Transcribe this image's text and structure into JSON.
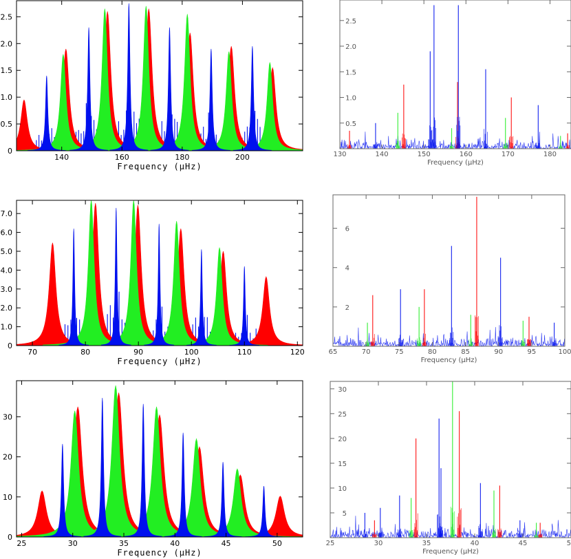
{
  "colors": {
    "red": "#ff0000",
    "green": "#22ee22",
    "blue": "#0010ee"
  },
  "chart_data": [
    {
      "id": "left-1",
      "type": "area",
      "xlabel": "Frequency (μHz)",
      "xlim": [
        125,
        220
      ],
      "ylim": [
        0,
        2.8
      ],
      "xticks": [
        140,
        160,
        180,
        200
      ],
      "xtick_labels": [
        "140",
        "160",
        "180",
        "200"
      ],
      "yticks": [
        0,
        0.5,
        1.0,
        1.5,
        2.0,
        2.5
      ],
      "ytick_labels": [
        "0",
        "0.5",
        "1.0",
        "1.5",
        "2.0",
        "2.5"
      ],
      "series": [
        {
          "color": "red",
          "peaks": [
            [
              127.5,
              0.95
            ],
            [
              141.4,
              1.9
            ],
            [
              155.2,
              2.6
            ],
            [
              168.9,
              2.65
            ],
            [
              182.6,
              2.2
            ],
            [
              196.3,
              1.95
            ],
            [
              210.0,
              1.55
            ]
          ],
          "width": 1.3
        },
        {
          "color": "green",
          "peaks": [
            [
              140.5,
              1.8
            ],
            [
              154.3,
              2.65
            ],
            [
              168.0,
              2.7
            ],
            [
              181.7,
              2.55
            ],
            [
              195.5,
              1.85
            ],
            [
              209.1,
              1.65
            ]
          ],
          "width": 1.1
        },
        {
          "color": "blue",
          "peaks": [
            [
              135.0,
              1.4
            ],
            [
              149.0,
              2.3
            ],
            [
              162.3,
              2.75
            ],
            [
              175.8,
              2.3
            ],
            [
              189.6,
              1.9
            ],
            [
              203.3,
              1.95
            ]
          ],
          "width": 0.45
        }
      ]
    },
    {
      "id": "right-1",
      "type": "line",
      "xlabel": "Frequency (μHz)",
      "xlim": [
        130,
        185
      ],
      "ylim": [
        0,
        2.9
      ],
      "xticks": [
        130,
        140,
        150,
        160,
        170,
        180
      ],
      "xtick_labels": [
        "130",
        "140",
        "150",
        "160",
        "170",
        "180"
      ],
      "yticks": [
        0.5,
        1.0,
        1.5,
        2.0,
        2.5
      ],
      "ytick_labels": [
        "0.5",
        "1.0",
        "1.5",
        "2.0",
        "2.5"
      ],
      "spikes": [
        {
          "color": "red",
          "points": [
            [
              132.3,
              0.35
            ],
            [
              145.2,
              1.25
            ],
            [
              158.0,
              1.3
            ],
            [
              170.8,
              1.0
            ],
            [
              184.2,
              0.3
            ]
          ]
        },
        {
          "color": "green",
          "points": [
            [
              143.8,
              0.7
            ],
            [
              156.6,
              0.4
            ],
            [
              169.4,
              0.6
            ],
            [
              182.5,
              0.25
            ]
          ]
        },
        {
          "color": "blue",
          "points": [
            [
              138.5,
              0.5
            ],
            [
              151.5,
              1.9
            ],
            [
              152.4,
              2.8
            ],
            [
              158.2,
              2.8
            ],
            [
              164.7,
              1.55
            ],
            [
              177.2,
              0.85
            ]
          ]
        }
      ]
    },
    {
      "id": "left-2",
      "type": "area",
      "xlabel": "Frequency (μHz)",
      "xlim": [
        67,
        121
      ],
      "ylim": [
        0,
        7.7
      ],
      "xticks": [
        70,
        80,
        90,
        100,
        110,
        120
      ],
      "xtick_labels": [
        "70",
        "80",
        "90",
        "100",
        "110",
        "120"
      ],
      "yticks": [
        0,
        1.0,
        2.0,
        3.0,
        4.0,
        5.0,
        6.0,
        7.0
      ],
      "ytick_labels": [
        "0",
        "1.0",
        "2.0",
        "3.0",
        "4.0",
        "5.0",
        "6.0",
        "7.0"
      ],
      "series": [
        {
          "color": "red",
          "peaks": [
            [
              73.8,
              5.45
            ],
            [
              81.9,
              7.55
            ],
            [
              89.9,
              7.45
            ],
            [
              98.0,
              6.2
            ],
            [
              106.0,
              5.0
            ],
            [
              114.1,
              3.65
            ]
          ],
          "width": 0.75
        },
        {
          "color": "green",
          "peaks": [
            [
              81.1,
              7.7
            ],
            [
              89.1,
              7.7
            ],
            [
              97.2,
              6.6
            ],
            [
              105.3,
              5.2
            ]
          ],
          "width": 0.65
        },
        {
          "color": "blue",
          "peaks": [
            [
              77.8,
              6.2
            ],
            [
              85.8,
              7.3
            ],
            [
              93.9,
              6.45
            ],
            [
              101.9,
              5.1
            ],
            [
              110.0,
              4.2
            ]
          ],
          "width": 0.2
        }
      ]
    },
    {
      "id": "right-2",
      "type": "line",
      "xlabel": "Frequency (μHz)",
      "xlim": [
        65,
        100
      ],
      "ylim": [
        0,
        7.7
      ],
      "xticks": [
        65,
        70,
        75,
        80,
        85,
        90,
        95,
        100
      ],
      "xtick_labels": [
        "65",
        "70",
        "75",
        "80",
        "85",
        "90",
        "95",
        "100"
      ],
      "yticks": [
        2,
        4,
        6
      ],
      "ytick_labels": [
        "2",
        "4",
        "6"
      ],
      "spikes": [
        {
          "color": "red",
          "points": [
            [
              71.0,
              2.6
            ],
            [
              78.8,
              2.9
            ],
            [
              86.7,
              7.6
            ],
            [
              94.6,
              1.5
            ]
          ]
        },
        {
          "color": "green",
          "points": [
            [
              70.2,
              1.2
            ],
            [
              78.0,
              2.0
            ],
            [
              85.8,
              1.6
            ],
            [
              93.7,
              1.3
            ]
          ]
        },
        {
          "color": "blue",
          "points": [
            [
              75.2,
              2.9
            ],
            [
              82.9,
              5.1
            ],
            [
              90.3,
              4.5
            ],
            [
              98.4,
              1.2
            ]
          ]
        }
      ]
    },
    {
      "id": "left-3",
      "type": "area",
      "xlabel": "Frequency (μHz)",
      "xlim": [
        24.5,
        52.5
      ],
      "ylim": [
        0,
        39
      ],
      "xticks": [
        25,
        30,
        35,
        40,
        45,
        50
      ],
      "xtick_labels": [
        "25",
        "30",
        "35",
        "40",
        "45",
        "50"
      ],
      "yticks": [
        0,
        10,
        20,
        30
      ],
      "ytick_labels": [
        "0",
        "10",
        "20",
        "30"
      ],
      "series": [
        {
          "color": "red",
          "peaks": [
            [
              27.0,
              11.5
            ],
            [
              30.5,
              32.5
            ],
            [
              34.5,
              36.0
            ],
            [
              38.5,
              30.5
            ],
            [
              42.4,
              22.5
            ],
            [
              46.4,
              15.5
            ],
            [
              50.3,
              10.2
            ]
          ],
          "width": 0.5
        },
        {
          "color": "green",
          "peaks": [
            [
              30.2,
              31.5
            ],
            [
              34.2,
              37.8
            ],
            [
              38.2,
              32.5
            ],
            [
              42.1,
              24.5
            ],
            [
              46.1,
              17.0
            ]
          ],
          "width": 0.45
        },
        {
          "color": "blue",
          "peaks": [
            [
              29.0,
              23.2
            ],
            [
              32.9,
              34.7
            ],
            [
              36.9,
              33.2
            ],
            [
              40.8,
              26.0
            ],
            [
              44.7,
              18.7
            ],
            [
              48.7,
              12.7
            ]
          ],
          "width": 0.13
        }
      ]
    },
    {
      "id": "right-3",
      "type": "line",
      "xlabel": "Frequency (μHz)",
      "xlim": [
        25,
        50
      ],
      "ylim": [
        0,
        31.5
      ],
      "xticks": [
        25,
        30,
        35,
        40,
        45,
        50
      ],
      "xtick_labels": [
        "25",
        "30",
        "35",
        "40",
        "45",
        "50"
      ],
      "yticks": [
        5,
        10,
        15,
        20,
        25,
        30
      ],
      "ytick_labels": [
        "5",
        "10",
        "15",
        "20",
        "25",
        "30"
      ],
      "spikes": [
        {
          "color": "red",
          "points": [
            [
              29.6,
              3.5
            ],
            [
              33.9,
              20.0
            ],
            [
              38.4,
              25.5
            ],
            [
              42.6,
              10.5
            ],
            [
              46.8,
              3.0
            ]
          ]
        },
        {
          "color": "green",
          "points": [
            [
              33.4,
              8.0
            ],
            [
              37.7,
              31.5
            ],
            [
              42.0,
              9.5
            ],
            [
              46.4,
              3.0
            ]
          ]
        },
        {
          "color": "blue",
          "points": [
            [
              28.6,
              5.0
            ],
            [
              30.2,
              6.0
            ],
            [
              32.2,
              8.5
            ],
            [
              36.3,
              24.0
            ],
            [
              36.5,
              14.0
            ],
            [
              40.6,
              11.0
            ],
            [
              44.7,
              3.5
            ]
          ]
        }
      ]
    }
  ]
}
